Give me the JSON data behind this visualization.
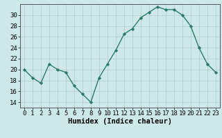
{
  "x": [
    0,
    1,
    2,
    3,
    4,
    5,
    6,
    7,
    8,
    9,
    10,
    11,
    12,
    13,
    14,
    15,
    16,
    17,
    18,
    19,
    20,
    21,
    22,
    23
  ],
  "y": [
    20,
    18.5,
    17.5,
    21,
    20,
    19.5,
    17,
    15.5,
    14,
    18.5,
    21,
    23.5,
    26.5,
    27.5,
    29.5,
    30.5,
    31.5,
    31,
    31,
    30,
    28,
    24,
    21,
    19.5
  ],
  "line_color": "#2d7a6e",
  "marker": "D",
  "marker_size": 2.2,
  "bg_color": "#cce8e8",
  "grid_color": "#b8d0d0",
  "xlabel": "Humidex (Indice chaleur)",
  "xlim": [
    -0.5,
    23.5
  ],
  "ylim": [
    13,
    32
  ],
  "yticks": [
    14,
    16,
    18,
    20,
    22,
    24,
    26,
    28,
    30
  ],
  "xticks": [
    0,
    1,
    2,
    3,
    4,
    5,
    6,
    7,
    8,
    9,
    10,
    11,
    12,
    13,
    14,
    15,
    16,
    17,
    18,
    19,
    20,
    21,
    22,
    23
  ],
  "line_width": 1.0,
  "tick_fontsize": 6.5,
  "xlabel_fontsize": 7.5
}
